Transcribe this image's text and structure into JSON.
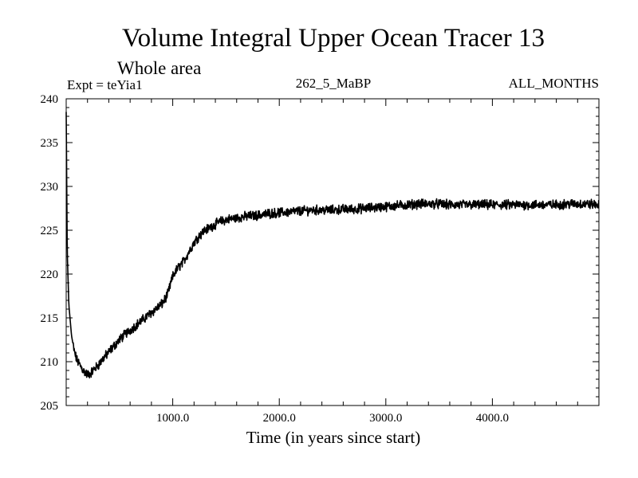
{
  "chart_data": {
    "type": "line",
    "title": "Volume Integral Upper Ocean Tracer 13",
    "subtitle": "Whole area",
    "experiment_label": "Expt = teYia1",
    "center_label": "262_5_MaBP",
    "right_label": "ALL_MONTHS",
    "xlabel": "Time (in years since start)",
    "ylabel": "",
    "xlim": [
      0,
      5000
    ],
    "ylim": [
      205,
      240
    ],
    "x_ticks": [
      1000,
      2000,
      3000,
      4000
    ],
    "x_tick_labels": [
      "1000.0",
      "2000.0",
      "3000.0",
      "4000.0"
    ],
    "y_ticks": [
      205,
      210,
      215,
      220,
      225,
      230,
      235,
      240
    ],
    "y_tick_labels": [
      "205",
      "210",
      "215",
      "220",
      "225",
      "230",
      "235",
      "240"
    ],
    "grid": false,
    "series": [
      {
        "name": "teYia1",
        "color": "#000000",
        "x": [
          0,
          10,
          25,
          50,
          75,
          100,
          130,
          160,
          200,
          230,
          260,
          300,
          350,
          400,
          450,
          500,
          550,
          600,
          650,
          700,
          750,
          800,
          850,
          900,
          950,
          980,
          1000,
          1020,
          1050,
          1100,
          1150,
          1200,
          1250,
          1300,
          1350,
          1400,
          1450,
          1500,
          1600,
          1700,
          1800,
          1900,
          2000,
          2100,
          2200,
          2300,
          2400,
          2500,
          2600,
          2700,
          2800,
          2900,
          3000,
          3100,
          3200,
          3300,
          3400,
          3500,
          3600,
          3700,
          3800,
          3900,
          4000,
          4100,
          4200,
          4300,
          4400,
          4500,
          4600,
          4700,
          4800,
          4900,
          5000
        ],
        "values": [
          238.5,
          222.5,
          216.5,
          213.0,
          211.2,
          210.2,
          209.6,
          209.0,
          208.5,
          208.7,
          209.1,
          209.6,
          210.4,
          211.1,
          211.8,
          212.5,
          213.1,
          213.6,
          214.1,
          214.6,
          215.1,
          215.6,
          216.1,
          216.6,
          217.6,
          218.9,
          219.7,
          220.2,
          220.7,
          221.4,
          222.5,
          223.6,
          224.4,
          225.0,
          225.3,
          225.7,
          226.0,
          226.2,
          226.4,
          226.6,
          226.7,
          226.9,
          227.0,
          227.1,
          227.2,
          227.3,
          227.3,
          227.3,
          227.4,
          227.4,
          227.5,
          227.6,
          227.7,
          227.8,
          227.9,
          228.0,
          228.0,
          228.0,
          227.9,
          227.9,
          227.9,
          227.9,
          227.9,
          227.9,
          227.9,
          227.9,
          227.9,
          227.9,
          227.9,
          228.0,
          228.0,
          228.0,
          227.9
        ]
      }
    ]
  }
}
